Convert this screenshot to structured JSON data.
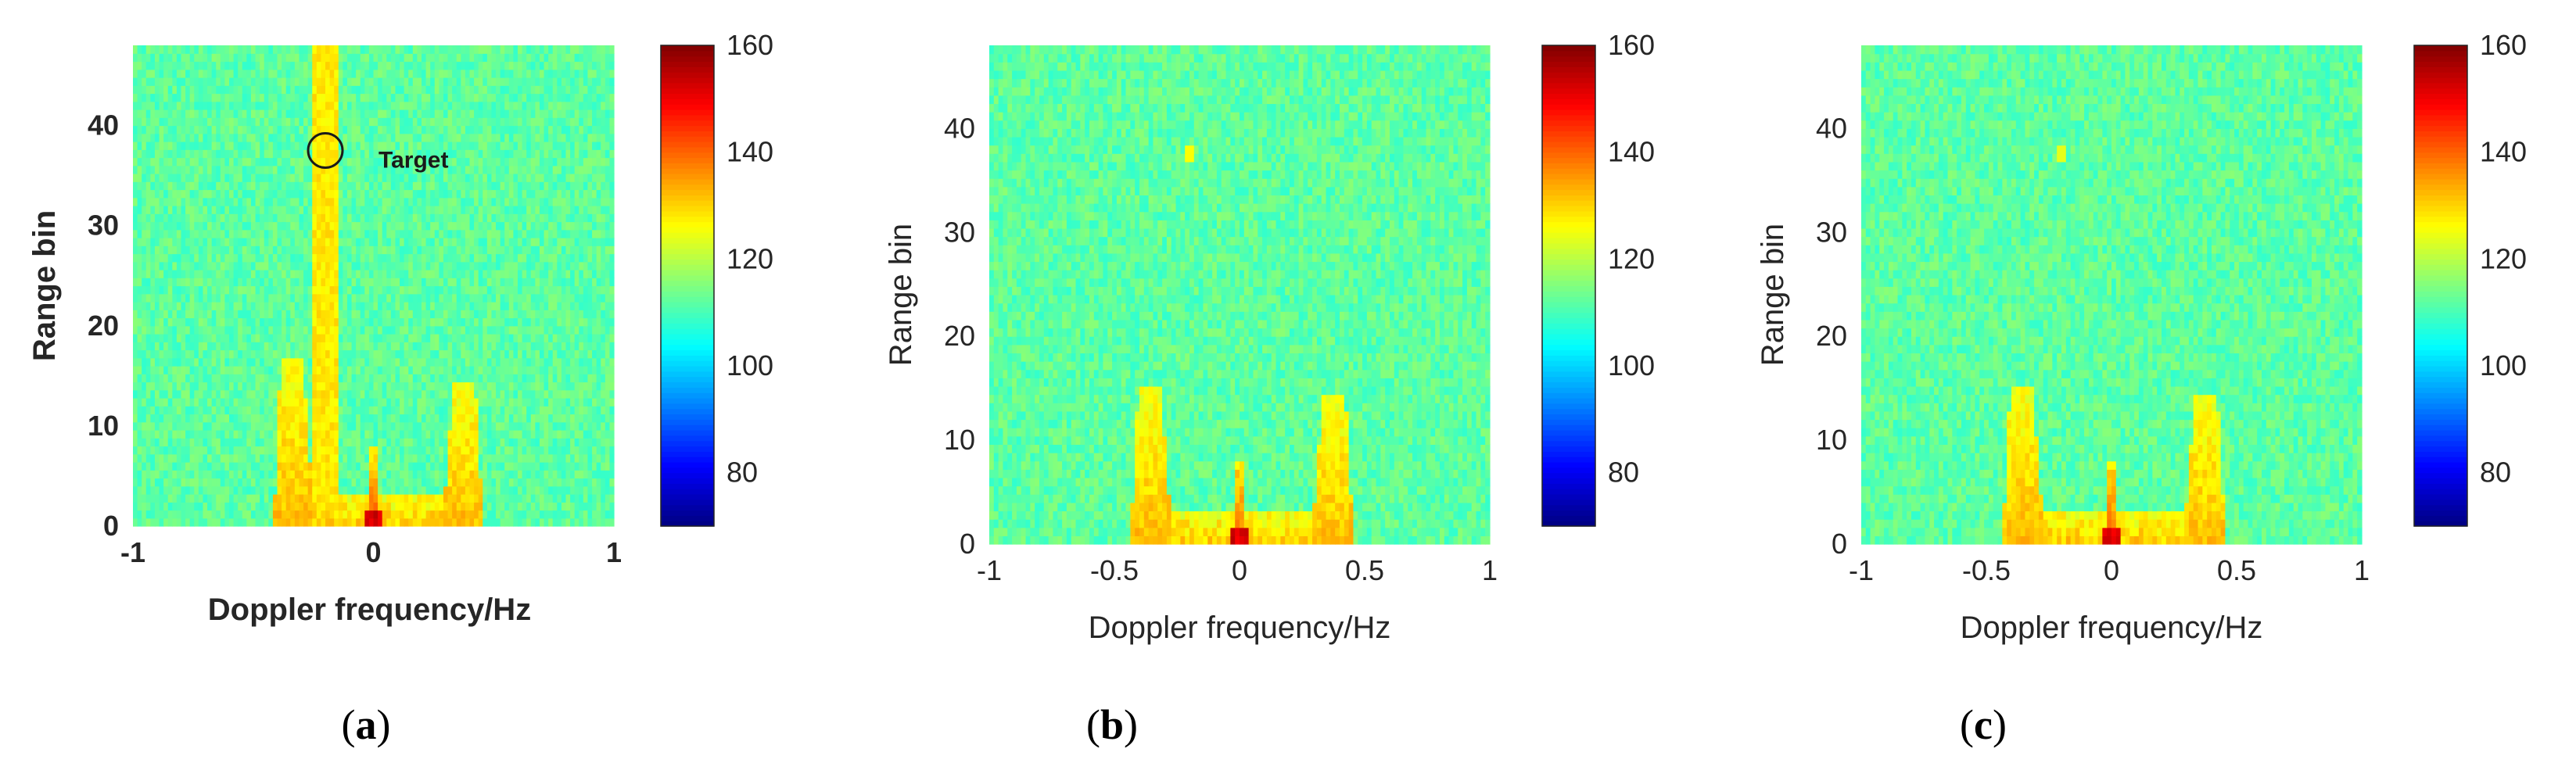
{
  "chart_data": [
    {
      "type": "heatmap",
      "caption": "(a)",
      "xlabel": "Doppler frequency/Hz",
      "ylabel": "Range bin",
      "xlim": [
        -1,
        1
      ],
      "ylim": [
        0,
        48
      ],
      "xticks": [
        "-1",
        "0",
        "1"
      ],
      "yticks": [
        "0",
        "10",
        "20",
        "30",
        "40"
      ],
      "colorbar": {
        "range": [
          70,
          160
        ],
        "ticks": [
          "80",
          "100",
          "120",
          "140",
          "160"
        ],
        "colormap": "jet"
      },
      "background_level": 112,
      "features": [
        {
          "kind": "vertical_band",
          "x_center": -0.2,
          "width": 0.12,
          "level": 128
        },
        {
          "kind": "clutter_ridge",
          "x_center": -0.33,
          "y_top": 17,
          "level": 132
        },
        {
          "kind": "clutter_ridge",
          "x_center": 0.37,
          "y_top": 14,
          "level": 132
        },
        {
          "kind": "clutter_core",
          "x_center": 0.0,
          "level": 152
        }
      ],
      "annotation": {
        "text": "Target",
        "x": -0.2,
        "y": 37.5
      }
    },
    {
      "type": "heatmap",
      "caption": "(b)",
      "xlabel": "Doppler frequency/Hz",
      "ylabel": "Range bin",
      "xlim": [
        -1,
        1
      ],
      "ylim": [
        0,
        48
      ],
      "xticks": [
        "-1",
        "-0.5",
        "0",
        "0.5",
        "1"
      ],
      "yticks": [
        "0",
        "10",
        "20",
        "30",
        "40"
      ],
      "colorbar": {
        "range": [
          70,
          160
        ],
        "ticks": [
          "80",
          "100",
          "120",
          "140",
          "160"
        ],
        "colormap": "jet"
      },
      "background_level": 112,
      "features": [
        {
          "kind": "clutter_ridge",
          "x_center": -0.35,
          "y_top": 15,
          "level": 132
        },
        {
          "kind": "clutter_ridge",
          "x_center": 0.37,
          "y_top": 14,
          "level": 132
        },
        {
          "kind": "clutter_core",
          "x_center": 0.0,
          "level": 152
        },
        {
          "kind": "hotspot",
          "x": -0.2,
          "y": 37.5,
          "level": 126
        }
      ]
    },
    {
      "type": "heatmap",
      "caption": "(c)",
      "xlabel": "Doppler frequency/Hz",
      "ylabel": "Range bin",
      "xlim": [
        -1,
        1
      ],
      "ylim": [
        0,
        48
      ],
      "xticks": [
        "-1",
        "-0.5",
        "0",
        "0.5",
        "1"
      ],
      "yticks": [
        "0",
        "10",
        "20",
        "30",
        "40"
      ],
      "colorbar": {
        "range": [
          70,
          160
        ],
        "ticks": [
          "80",
          "100",
          "120",
          "140",
          "160"
        ],
        "colormap": "jet"
      },
      "background_level": 112,
      "features": [
        {
          "kind": "clutter_ridge",
          "x_center": -0.35,
          "y_top": 15,
          "level": 132
        },
        {
          "kind": "clutter_ridge",
          "x_center": 0.37,
          "y_top": 14,
          "level": 132
        },
        {
          "kind": "clutter_core",
          "x_center": 0.0,
          "level": 152
        },
        {
          "kind": "hotspot",
          "x": -0.2,
          "y": 37.5,
          "level": 124
        }
      ]
    }
  ]
}
